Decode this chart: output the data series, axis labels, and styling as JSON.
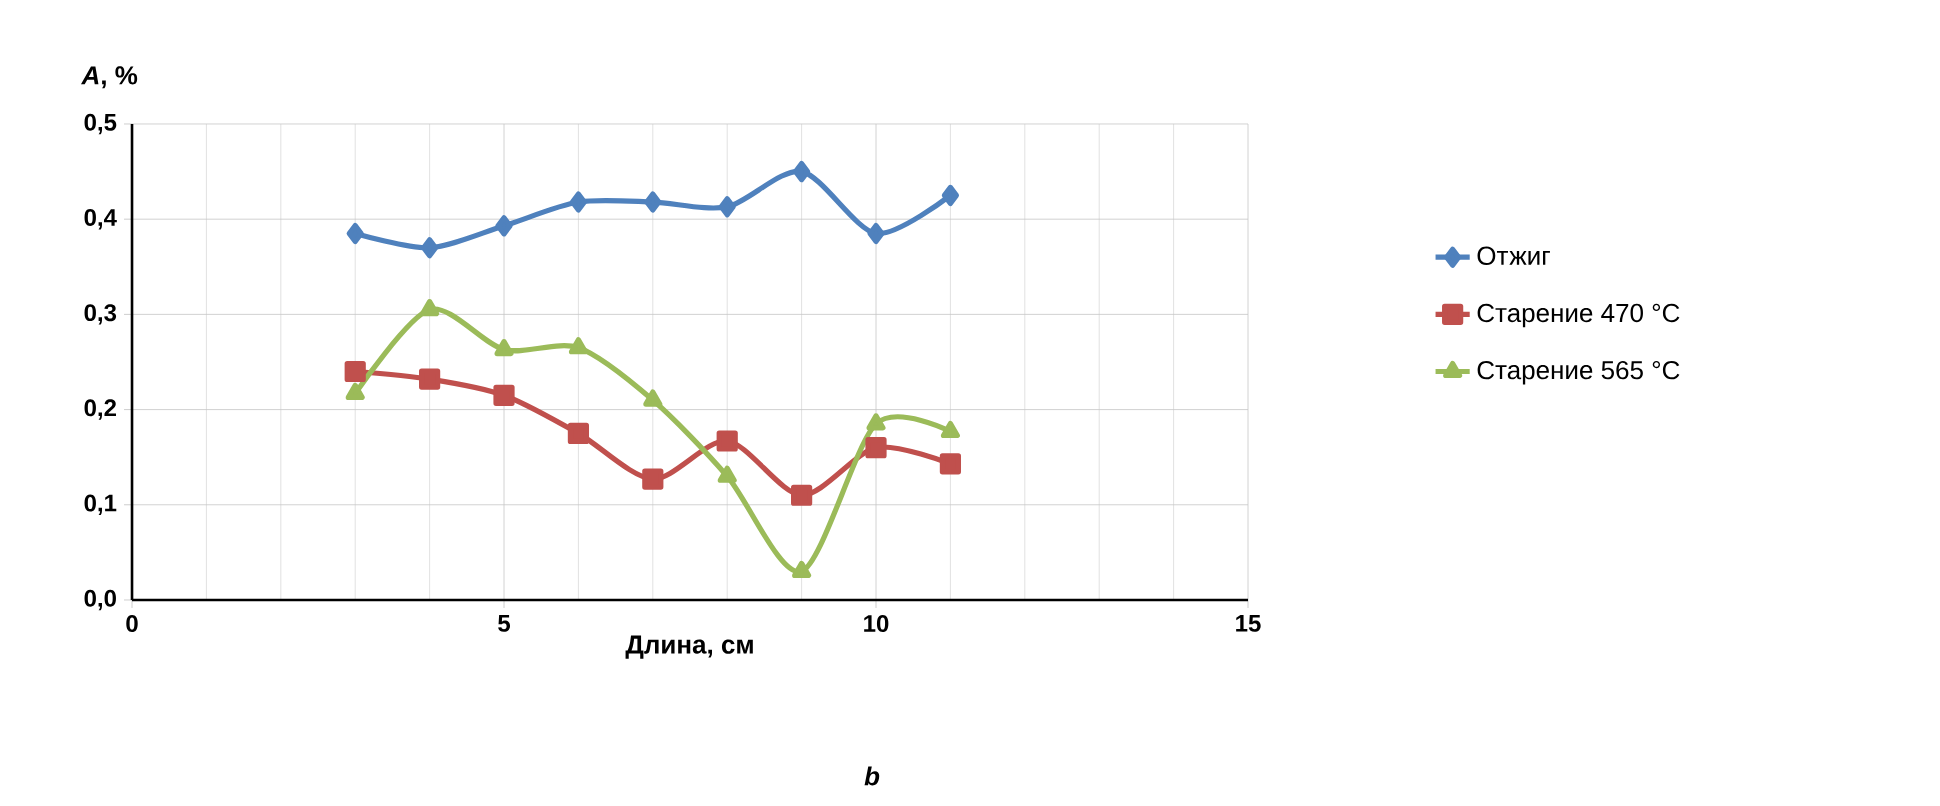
{
  "chart_data": {
    "type": "line",
    "xlabel": "Длина, см",
    "ylabel": "*A*, %",
    "x": [
      3,
      4,
      5,
      6,
      7,
      8,
      9,
      10,
      11
    ],
    "series": [
      {
        "name": "Отжиг",
        "color": "#4f81bd",
        "marker": "diamond",
        "values": [
          0.385,
          0.37,
          0.393,
          0.418,
          0.418,
          0.413,
          0.45,
          0.385,
          0.425
        ]
      },
      {
        "name": "Старение 470 °C",
        "color": "#c0504d",
        "marker": "square",
        "values": [
          0.24,
          0.232,
          0.215,
          0.175,
          0.127,
          0.167,
          0.11,
          0.16,
          0.143
        ]
      },
      {
        "name": "Старение 565 °C",
        "color": "#9bbb59",
        "marker": "triangle",
        "values": [
          0.217,
          0.305,
          0.263,
          0.265,
          0.21,
          0.13,
          0.03,
          0.185,
          0.177
        ]
      }
    ],
    "xlim": [
      0,
      15
    ],
    "xticks": [
      0,
      5,
      10,
      15
    ],
    "ylim": [
      0,
      0.5
    ],
    "yticks": [
      {
        "value": 0,
        "label": "0,0"
      },
      {
        "value": 0.1,
        "label": "0,1"
      },
      {
        "value": 0.2,
        "label": "0,2"
      },
      {
        "value": 0.3,
        "label": "0,3"
      },
      {
        "value": 0.4,
        "label": "0,4"
      },
      {
        "value": 0.5,
        "label": "0,5"
      }
    ],
    "grid": true,
    "legend": "right",
    "line_style": "solid",
    "annotations": [
      "*b*"
    ]
  }
}
